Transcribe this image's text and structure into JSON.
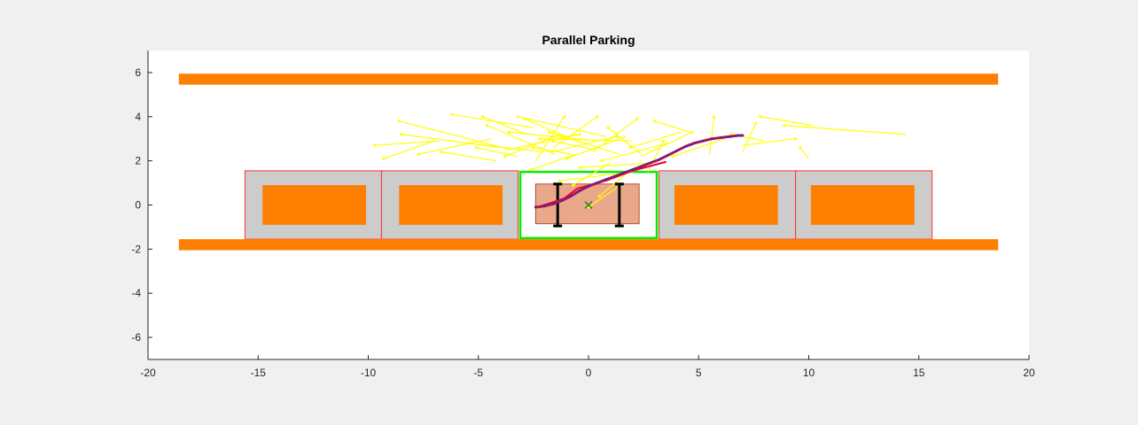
{
  "chart_data": {
    "type": "scatter",
    "title": "Parallel Parking",
    "xlabel": "",
    "ylabel": "",
    "xlim": [
      -20,
      20
    ],
    "ylim": [
      -7,
      7
    ],
    "x_ticks": [
      -20,
      -15,
      -10,
      -5,
      0,
      5,
      10,
      15,
      20
    ],
    "y_ticks": [
      -6,
      -4,
      -2,
      0,
      2,
      4,
      6
    ],
    "x_tick_labels": [
      "-20",
      "-15",
      "-10",
      "-5",
      "0",
      "5",
      "10",
      "15",
      "20"
    ],
    "y_tick_labels": [
      "-6",
      "-4",
      "-2",
      "0",
      "2",
      "4",
      "6"
    ],
    "grid": false,
    "colors": {
      "curb": "#ff8000",
      "slot_fill": "#cccccc",
      "slot_edge": "#ff3333",
      "target_slot": "#00ee00",
      "ego_car": "#eaa88a",
      "tree": "#ffff00",
      "path_red": "#ee0033",
      "path_blue": "#3333aa",
      "wheel": "#000000"
    },
    "curbs": [
      {
        "x0": -18.6,
        "x1": 18.6,
        "y0": 5.45,
        "y1": 5.95
      },
      {
        "x0": -18.6,
        "x1": 18.6,
        "y0": -2.05,
        "y1": -1.55
      }
    ],
    "parking_slots": [
      {
        "x0": -15.6,
        "x1": -9.4,
        "y0": -1.55,
        "y1": 1.55
      },
      {
        "x0": -9.4,
        "x1": -3.2,
        "y0": -1.55,
        "y1": 1.55
      },
      {
        "x0": 3.2,
        "x1": 9.4,
        "y0": -1.55,
        "y1": 1.55
      },
      {
        "x0": 9.4,
        "x1": 15.6,
        "y0": -1.55,
        "y1": 1.55
      }
    ],
    "target_slot": {
      "x0": -3.1,
      "x1": 3.1,
      "y0": -1.5,
      "y1": 1.5
    },
    "parked_cars": [
      {
        "x0": -14.8,
        "x1": -10.1,
        "y0": -0.9,
        "y1": 0.9
      },
      {
        "x0": -8.6,
        "x1": -3.9,
        "y0": -0.9,
        "y1": 0.9
      },
      {
        "x0": 3.9,
        "x1": 8.6,
        "y0": -0.9,
        "y1": 0.9
      },
      {
        "x0": 10.1,
        "x1": 14.8,
        "y0": -0.9,
        "y1": 0.9
      }
    ],
    "ego_car": {
      "x0": -2.4,
      "x1": 2.3,
      "y0": -0.85,
      "y1": 0.95
    },
    "axles": [
      {
        "x": -1.4,
        "y0": -0.95,
        "y1": 0.95
      },
      {
        "x": 1.4,
        "y0": -0.95,
        "y1": 0.95
      }
    ],
    "goal_marker": {
      "x": 0.0,
      "y": 0.0
    },
    "tree_edges": [
      [
        [
          -5.5,
          2.8
        ],
        [
          -2.0,
          2.4
        ]
      ],
      [
        [
          -6.2,
          4.1
        ],
        [
          -2.5,
          3.5
        ]
      ],
      [
        [
          -8.6,
          3.8
        ],
        [
          -3.5,
          2.5
        ]
      ],
      [
        [
          -9.7,
          2.7
        ],
        [
          -6.8,
          2.9
        ]
      ],
      [
        [
          -9.3,
          2.1
        ],
        [
          -7.0,
          2.9
        ]
      ],
      [
        [
          -8.5,
          3.2
        ],
        [
          -4.0,
          2.6
        ]
      ],
      [
        [
          -4.8,
          4.0
        ],
        [
          -2.8,
          3.2
        ]
      ],
      [
        [
          -5.1,
          2.6
        ],
        [
          -3.2,
          2.2
        ]
      ],
      [
        [
          -4.6,
          3.6
        ],
        [
          -1.5,
          2.3
        ]
      ],
      [
        [
          -3.2,
          4.0
        ],
        [
          0.8,
          3.1
        ]
      ],
      [
        [
          -2.9,
          3.9
        ],
        [
          -0.3,
          2.8
        ]
      ],
      [
        [
          -2.5,
          2.6
        ],
        [
          -0.8,
          2.3
        ]
      ],
      [
        [
          -1.8,
          3.3
        ],
        [
          1.4,
          2.3
        ]
      ],
      [
        [
          -1.1,
          4.0
        ],
        [
          -2.4,
          2.0
        ]
      ],
      [
        [
          -1.6,
          2.9
        ],
        [
          0.3,
          2.5
        ]
      ],
      [
        [
          -0.4,
          3.2
        ],
        [
          -3.7,
          2.5
        ]
      ],
      [
        [
          0.4,
          4.0
        ],
        [
          -1.6,
          2.6
        ]
      ],
      [
        [
          0.9,
          3.5
        ],
        [
          2.4,
          2.3
        ]
      ],
      [
        [
          1.3,
          3.1
        ],
        [
          -1.7,
          2.4
        ]
      ],
      [
        [
          2.2,
          3.9
        ],
        [
          0.2,
          2.4
        ]
      ],
      [
        [
          3.0,
          3.8
        ],
        [
          4.6,
          3.3
        ]
      ],
      [
        [
          3.4,
          2.9
        ],
        [
          2.7,
          1.5
        ]
      ],
      [
        [
          4.7,
          3.3
        ],
        [
          2.4,
          2.2
        ]
      ],
      [
        [
          5.7,
          4.0
        ],
        [
          5.5,
          2.3
        ]
      ],
      [
        [
          7.6,
          3.7
        ],
        [
          7.0,
          2.4
        ]
      ],
      [
        [
          7.8,
          4.0
        ],
        [
          10.2,
          3.6
        ]
      ],
      [
        [
          8.9,
          3.6
        ],
        [
          14.4,
          3.2
        ]
      ],
      [
        [
          9.4,
          3.0
        ],
        [
          7.0,
          2.7
        ]
      ],
      [
        [
          9.6,
          2.6
        ],
        [
          10.0,
          2.1
        ]
      ],
      [
        [
          -1.3,
          1.1
        ],
        [
          2.0,
          1.5
        ]
      ],
      [
        [
          -0.7,
          0.9
        ],
        [
          1.0,
          1.9
        ]
      ],
      [
        [
          0.5,
          0.4
        ],
        [
          1.7,
          1.4
        ]
      ],
      [
        [
          0.0,
          -0.1
        ],
        [
          1.3,
          0.8
        ]
      ],
      [
        [
          -0.4,
          1.7
        ],
        [
          2.8,
          1.9
        ]
      ],
      [
        [
          1.9,
          2.6
        ],
        [
          4.2,
          3.3
        ]
      ],
      [
        [
          -3.6,
          3.3
        ],
        [
          0.5,
          2.9
        ]
      ],
      [
        [
          -2.2,
          3.0
        ],
        [
          2.0,
          2.9
        ]
      ],
      [
        [
          -6.7,
          2.4
        ],
        [
          -4.2,
          2.0
        ]
      ],
      [
        [
          -1.0,
          2.1
        ],
        [
          1.7,
          3.1
        ]
      ],
      [
        [
          3.8,
          2.2
        ],
        [
          6.2,
          3.0
        ]
      ],
      [
        [
          6.5,
          3.2
        ],
        [
          8.0,
          2.9
        ]
      ],
      [
        [
          -3.8,
          2.2
        ],
        [
          -1.3,
          3.2
        ]
      ],
      [
        [
          0.6,
          2.0
        ],
        [
          3.6,
          2.8
        ]
      ],
      [
        [
          -2.6,
          1.6
        ],
        [
          -0.6,
          2.3
        ]
      ],
      [
        [
          -7.7,
          2.3
        ],
        [
          -4.4,
          3.0
        ]
      ]
    ],
    "path_red": [
      [
        -2.4,
        -0.1
      ],
      [
        -2.0,
        -0.05
      ],
      [
        -1.6,
        0.05
      ],
      [
        -1.2,
        0.2
      ],
      [
        -0.8,
        0.4
      ],
      [
        -0.4,
        0.65
      ],
      [
        0.0,
        0.85
      ],
      [
        0.4,
        1.0
      ],
      [
        0.8,
        1.15
      ],
      [
        1.2,
        1.3
      ],
      [
        1.6,
        1.45
      ],
      [
        2.0,
        1.6
      ],
      [
        2.4,
        1.75
      ],
      [
        2.8,
        1.9
      ],
      [
        3.2,
        2.05
      ],
      [
        3.6,
        2.25
      ],
      [
        4.0,
        2.45
      ],
      [
        4.4,
        2.65
      ],
      [
        4.8,
        2.8
      ],
      [
        5.2,
        2.9
      ],
      [
        5.6,
        3.0
      ],
      [
        6.0,
        3.05
      ],
      [
        6.4,
        3.1
      ],
      [
        6.8,
        3.15
      ],
      [
        7.0,
        3.15
      ]
    ],
    "path_blue": [
      [
        -2.2,
        -0.05
      ],
      [
        -1.4,
        0.1
      ],
      [
        -0.6,
        0.5
      ],
      [
        0.2,
        0.95
      ],
      [
        1.0,
        1.25
      ],
      [
        1.8,
        1.55
      ],
      [
        2.6,
        1.85
      ],
      [
        3.4,
        2.15
      ],
      [
        4.2,
        2.55
      ],
      [
        5.0,
        2.85
      ],
      [
        5.8,
        3.02
      ],
      [
        6.6,
        3.12
      ],
      [
        7.0,
        3.15
      ]
    ],
    "path_short": [
      [
        -2.3,
        -0.1
      ],
      [
        -1.1,
        0.3
      ],
      [
        -0.5,
        0.75
      ],
      [
        0.8,
        1.1
      ],
      [
        2.0,
        1.55
      ],
      [
        3.5,
        1.95
      ]
    ]
  }
}
